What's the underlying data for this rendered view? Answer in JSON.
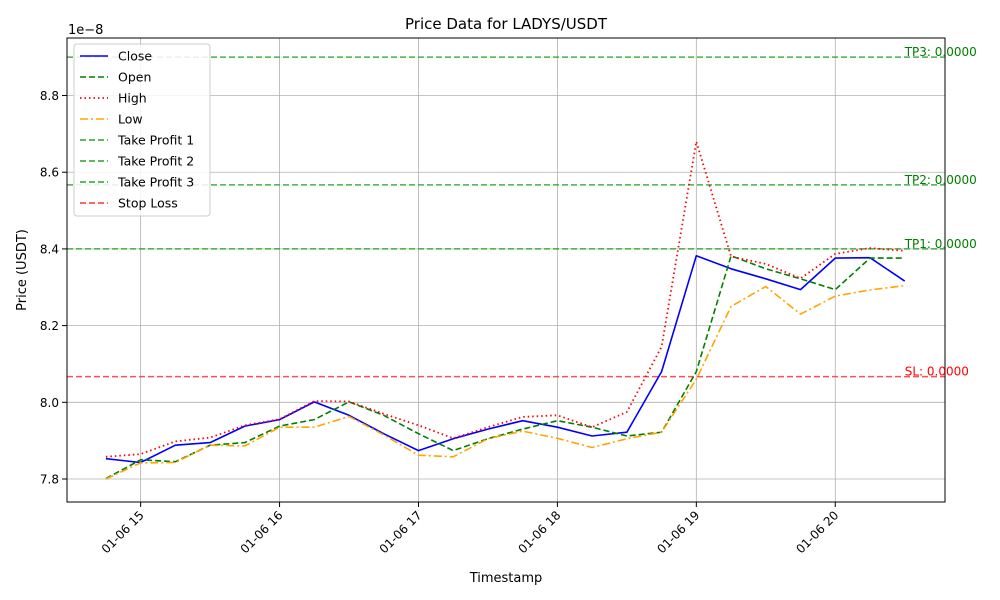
{
  "chart_data": {
    "type": "line",
    "title": "Price Data for LADYS/USDT",
    "xlabel": "Timestamp",
    "ylabel": "Price (USDT)",
    "offset_label": "1e−8",
    "x_ticks": [
      {
        "hour": 15,
        "label": "01-06 15"
      },
      {
        "hour": 16,
        "label": "01-06 16"
      },
      {
        "hour": 17,
        "label": "01-06 17"
      },
      {
        "hour": 18,
        "label": "01-06 18"
      },
      {
        "hour": 19,
        "label": "01-06 19"
      },
      {
        "hour": 20,
        "label": "01-06 20"
      }
    ],
    "xlim": [
      14.47,
      20.79
    ],
    "y_ticks": [
      {
        "value": 7.8,
        "label": "7.8"
      },
      {
        "value": 8.0,
        "label": "8.0"
      },
      {
        "value": 8.2,
        "label": "8.2"
      },
      {
        "value": 8.4,
        "label": "8.4"
      },
      {
        "value": 8.6,
        "label": "8.6"
      },
      {
        "value": 8.8,
        "label": "8.8"
      }
    ],
    "ylim": [
      7.74,
      8.95
    ],
    "grid": true,
    "legend_position": "top-left",
    "x": [
      14.75,
      15.0,
      15.25,
      15.5,
      15.75,
      16.0,
      16.25,
      16.5,
      16.75,
      17.0,
      17.25,
      17.5,
      17.75,
      18.0,
      18.25,
      18.5,
      18.75,
      19.0,
      19.25,
      19.5,
      19.75,
      20.0,
      20.25,
      20.5
    ],
    "series": [
      {
        "name": "Close",
        "color": "#0000ff",
        "dash": "solid",
        "width": 1.6,
        "values": [
          7.853,
          7.843,
          7.888,
          7.895,
          7.938,
          7.955,
          8.001,
          7.966,
          7.918,
          7.874,
          7.905,
          7.93,
          7.952,
          7.935,
          7.912,
          7.922,
          8.08,
          8.382,
          8.348,
          8.322,
          8.294,
          8.376,
          8.377,
          8.316
        ]
      },
      {
        "name": "Open",
        "color": "#008000",
        "dash": "6,3",
        "width": 1.6,
        "values": [
          7.801,
          7.85,
          7.845,
          7.888,
          7.895,
          7.938,
          7.955,
          8.001,
          7.966,
          7.918,
          7.874,
          7.905,
          7.93,
          7.952,
          7.935,
          7.912,
          7.922,
          8.08,
          8.382,
          8.348,
          8.322,
          8.294,
          8.376,
          8.376
        ]
      },
      {
        "name": "High",
        "color": "#ff0000",
        "dash": "1.5,3",
        "width": 1.8,
        "values": [
          7.858,
          7.865,
          7.898,
          7.908,
          7.94,
          7.956,
          8.003,
          8.002,
          7.97,
          7.94,
          7.906,
          7.935,
          7.962,
          7.966,
          7.935,
          7.975,
          8.145,
          8.68,
          8.38,
          8.361,
          8.323,
          8.387,
          8.402,
          8.395
        ]
      },
      {
        "name": "Low",
        "color": "#ffa500",
        "dash": "8,3,2,3",
        "width": 1.6,
        "values": [
          7.8,
          7.842,
          7.843,
          7.888,
          7.886,
          7.935,
          7.935,
          7.963,
          7.915,
          7.862,
          7.858,
          7.905,
          7.925,
          7.906,
          7.882,
          7.905,
          7.922,
          8.06,
          8.25,
          8.302,
          8.23,
          8.277,
          8.293,
          8.304
        ]
      }
    ],
    "levels": [
      {
        "name": "Take Profit 1",
        "value": 8.4,
        "color": "#2ca02c",
        "label": "TP1: 0.0000"
      },
      {
        "name": "Take Profit 2",
        "value": 8.567,
        "color": "#2ca02c",
        "label": "TP2: 0.0000"
      },
      {
        "name": "Take Profit 3",
        "value": 8.9,
        "color": "#2ca02c",
        "label": "TP3: 0.0000"
      },
      {
        "name": "Stop Loss",
        "value": 8.067,
        "color": "#ff3333",
        "label": "SL: 0.0000"
      }
    ],
    "level_label_colors": {
      "take_profit": "#008000",
      "stop_loss": "#ff0000"
    }
  }
}
